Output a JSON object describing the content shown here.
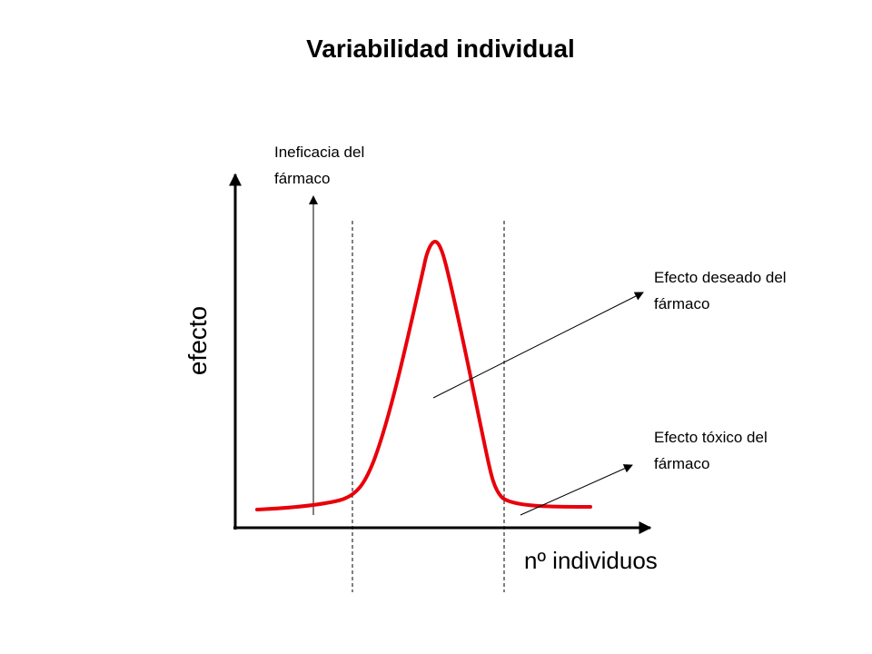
{
  "title": "Variabilidad individual",
  "axes": {
    "y_label": "efecto",
    "x_label": "nº individuos"
  },
  "annotations": {
    "ineficacia": [
      "Ineficacia del",
      "fármaco"
    ],
    "deseado": [
      "Efecto deseado del",
      "fármaco"
    ],
    "toxico": [
      "Efecto tóxico del",
      "fármaco"
    ]
  },
  "colors": {
    "curve": "#e8000b",
    "lines": "#000000"
  }
}
